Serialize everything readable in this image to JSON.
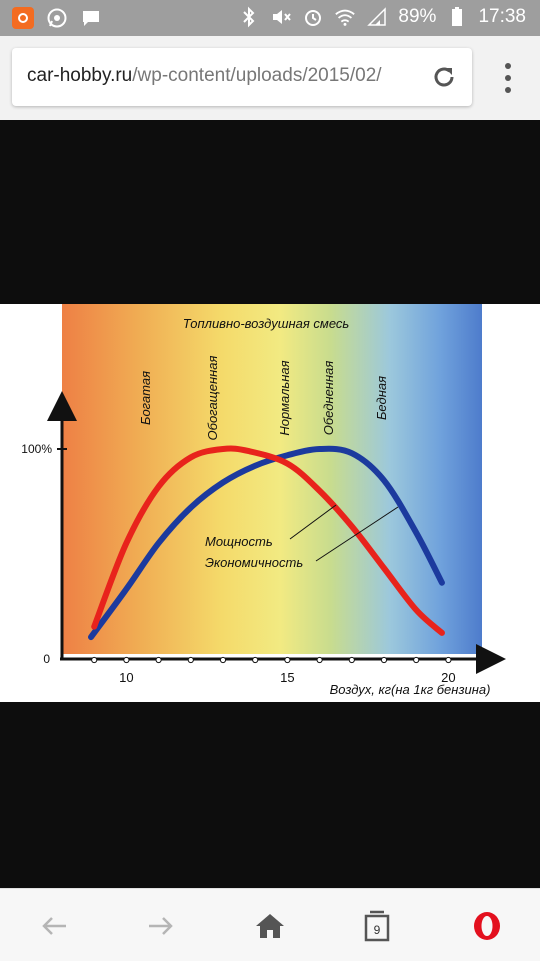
{
  "status_bar": {
    "battery_percent": "89%",
    "time": "17:38"
  },
  "browser": {
    "url_domain": "car-hobby.ru",
    "url_path": "/wp-content/uploads/2015/02/",
    "tab_count": "9"
  },
  "chart_data": {
    "type": "line",
    "title": "Топливно-воздушная смесь",
    "xlabel": "Воздух, кг(на 1кг бензина)",
    "ylabel": "",
    "x_ticks": [
      "10",
      "15",
      "20"
    ],
    "y_ticks": [
      "0",
      "100%"
    ],
    "xlim": [
      8,
      21.5
    ],
    "ylim": [
      0,
      125
    ],
    "zones": [
      "Богатая",
      "Обогащенная",
      "Нормальная",
      "Обедненная",
      "Бедная"
    ],
    "series": [
      {
        "name": "Мощность",
        "color": "#e8231c",
        "x": [
          9,
          10,
          11,
          12,
          13,
          13.8,
          15,
          16,
          17,
          18,
          19,
          19.8
        ],
        "y": [
          15,
          55,
          82,
          96,
          100,
          99,
          93,
          80,
          63,
          43,
          23,
          12
        ]
      },
      {
        "name": "Экономичность",
        "color": "#1c3a9e",
        "x": [
          8.9,
          10,
          11,
          12,
          13,
          14,
          15,
          16,
          17,
          18,
          19,
          19.8
        ],
        "y": [
          10,
          33,
          55,
          72,
          84,
          92,
          97,
          100,
          98,
          85,
          60,
          36
        ]
      }
    ]
  }
}
